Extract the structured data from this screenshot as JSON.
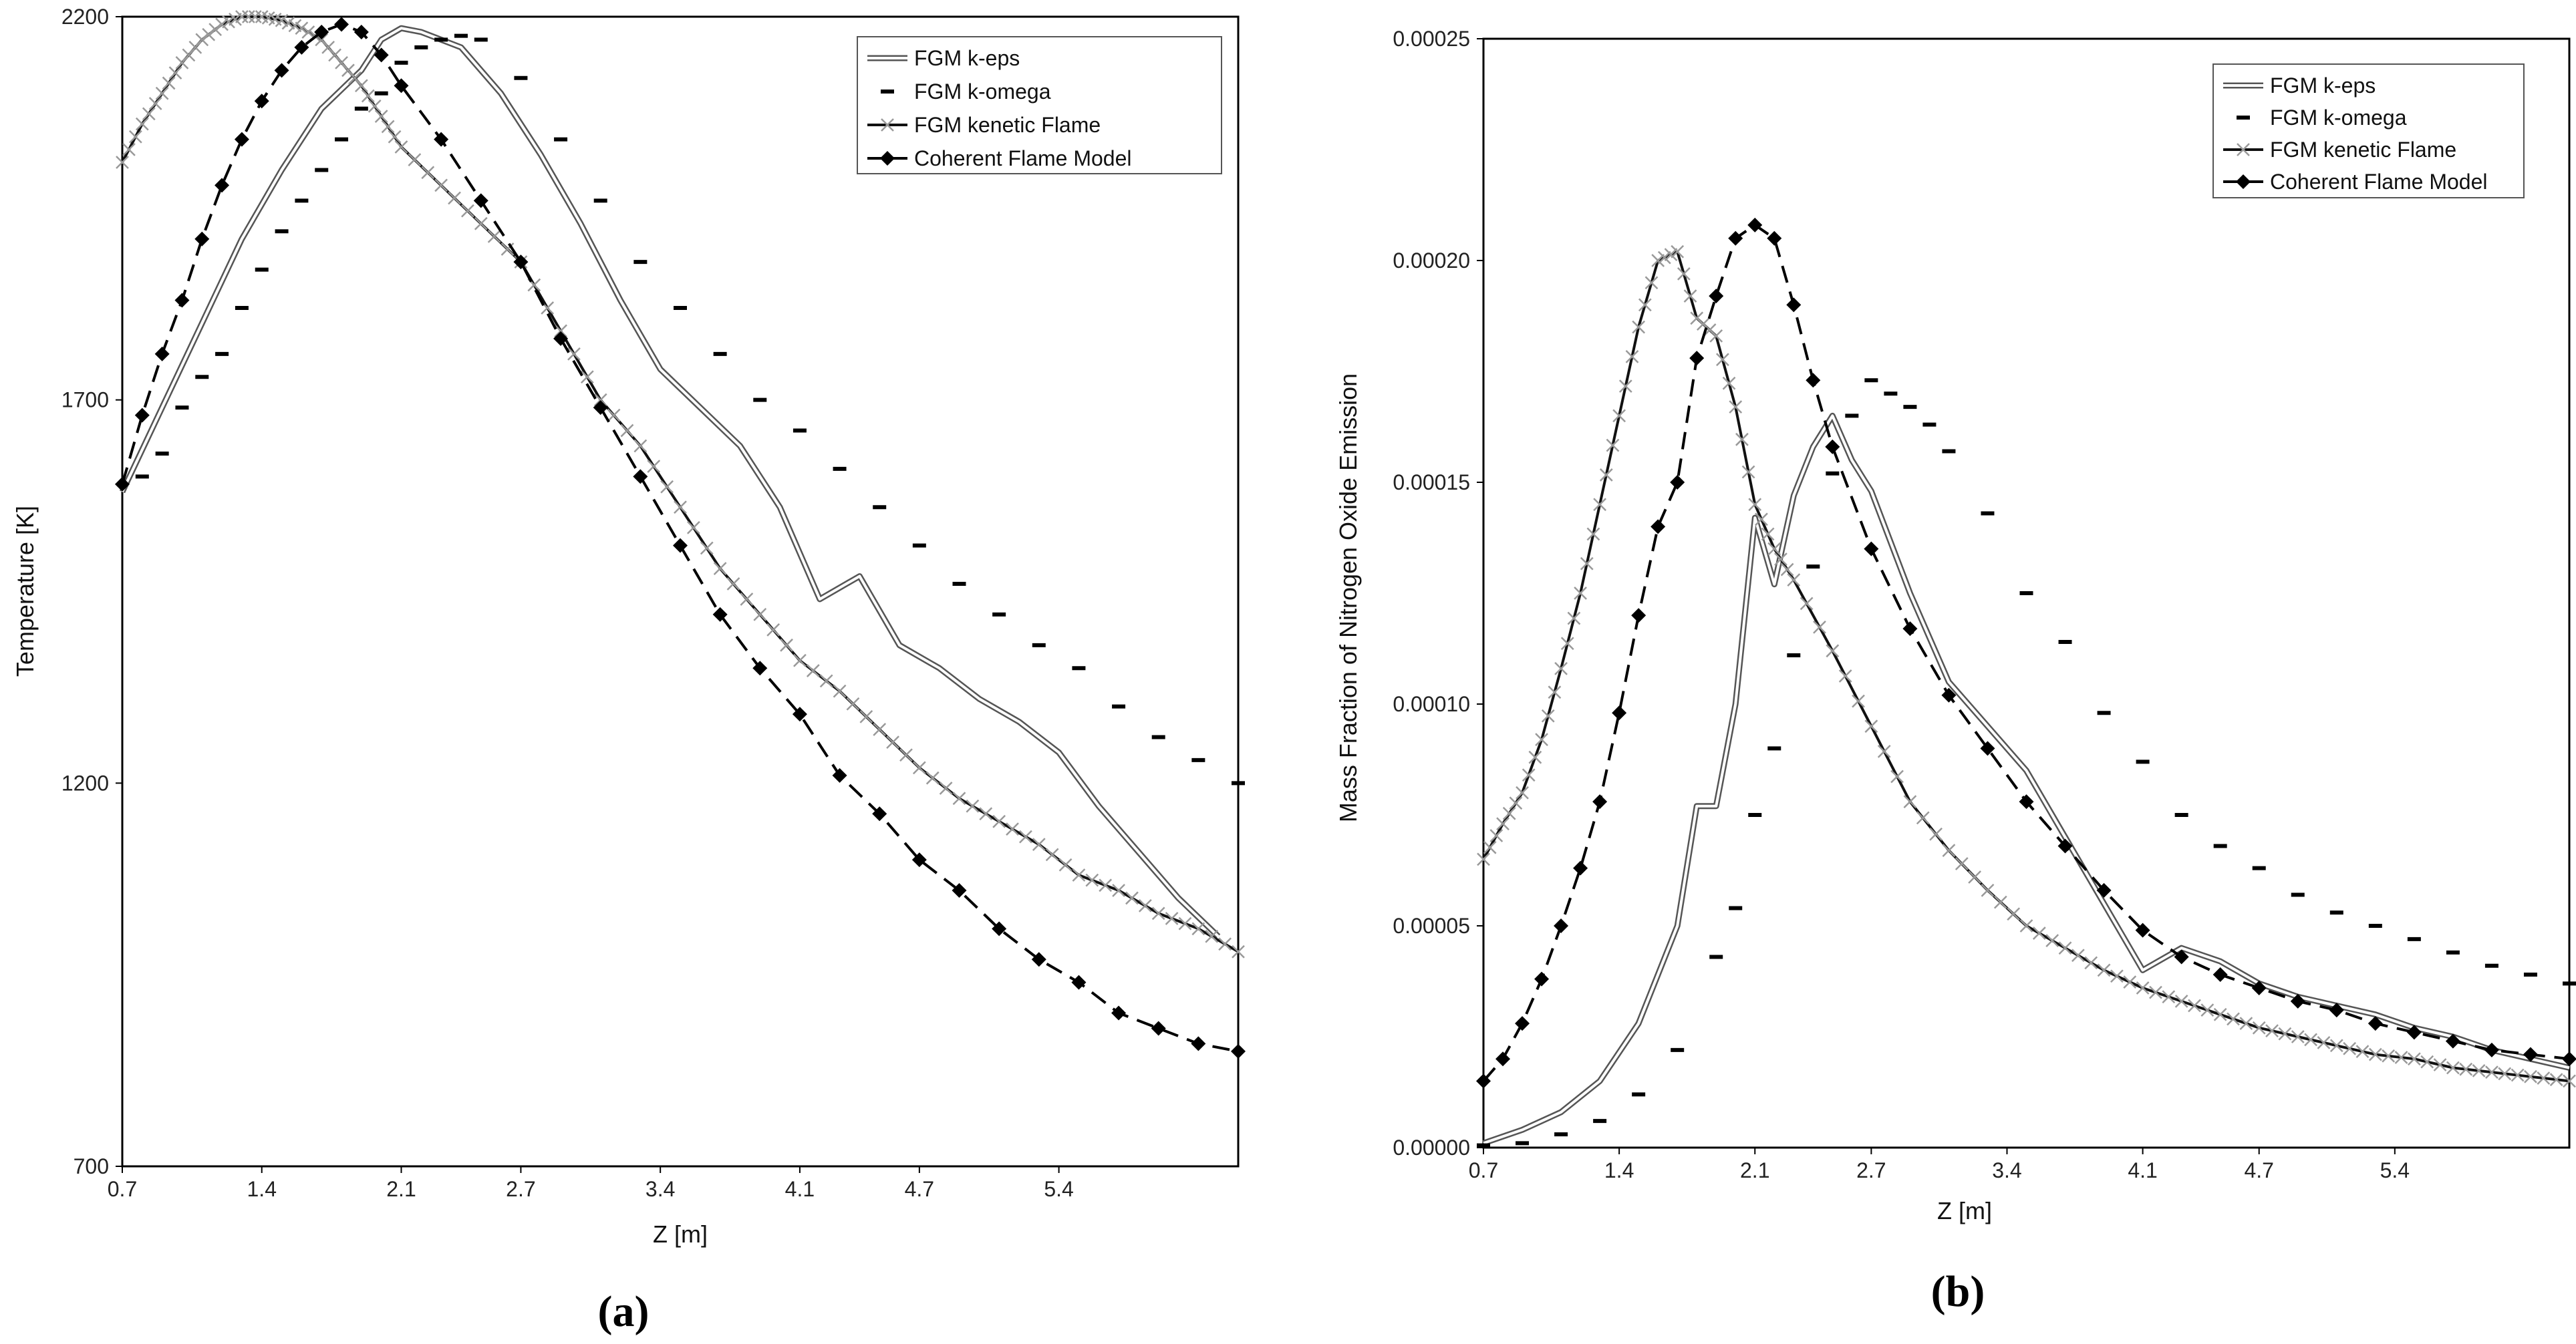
{
  "chart_data": [
    {
      "type": "line",
      "panel_label": "(a)",
      "xlabel": "Z [m]",
      "ylabel": "Temperature [K]",
      "x_tick_labels": [
        "0.7",
        "1.4",
        "2.1",
        "2.7",
        "3.4",
        "4.1",
        "4.7",
        "5.4"
      ],
      "x_ticks": [
        0.7,
        1.4,
        2.1,
        2.7,
        3.4,
        4.1,
        4.7,
        5.4
      ],
      "xlim": [
        0.7,
        6.3
      ],
      "y_tick_labels": [
        "700",
        "1200",
        "1700",
        "2200"
      ],
      "y_ticks": [
        700,
        1200,
        1700,
        2200
      ],
      "ylim": [
        700,
        2200
      ],
      "legend_position": "top-right",
      "series": [
        {
          "name": "FGM k-eps",
          "style": "double-line",
          "x": [
            0.7,
            0.9,
            1.1,
            1.3,
            1.5,
            1.7,
            1.9,
            2.0,
            2.1,
            2.2,
            2.4,
            2.6,
            2.8,
            3.0,
            3.2,
            3.4,
            3.6,
            3.8,
            4.0,
            4.2,
            4.4,
            4.6,
            4.8,
            5.0,
            5.2,
            5.4,
            5.6,
            5.8,
            6.0,
            6.2
          ],
          "y": [
            1580,
            1690,
            1800,
            1910,
            2000,
            2080,
            2130,
            2170,
            2185,
            2180,
            2160,
            2100,
            2020,
            1930,
            1830,
            1740,
            1690,
            1640,
            1560,
            1440,
            1470,
            1380,
            1350,
            1310,
            1280,
            1240,
            1170,
            1110,
            1050,
            1000
          ]
        },
        {
          "name": "FGM k-omega",
          "style": "dash-markers",
          "x": [
            0.8,
            0.9,
            1.0,
            1.1,
            1.2,
            1.3,
            1.4,
            1.5,
            1.6,
            1.7,
            1.8,
            1.9,
            2.0,
            2.1,
            2.2,
            2.3,
            2.4,
            2.5,
            2.7,
            2.9,
            3.1,
            3.3,
            3.5,
            3.7,
            3.9,
            4.1,
            4.3,
            4.5,
            4.7,
            4.9,
            5.1,
            5.3,
            5.5,
            5.7,
            5.9,
            6.1,
            6.3
          ],
          "y": [
            1600,
            1630,
            1690,
            1730,
            1760,
            1820,
            1870,
            1920,
            1960,
            2000,
            2040,
            2080,
            2100,
            2140,
            2160,
            2170,
            2175,
            2170,
            2120,
            2040,
            1960,
            1880,
            1820,
            1760,
            1700,
            1660,
            1610,
            1560,
            1510,
            1460,
            1420,
            1380,
            1350,
            1300,
            1260,
            1230,
            1200
          ]
        },
        {
          "name": "FGM kenetic Flame",
          "style": "line-x-markers",
          "x": [
            0.7,
            0.8,
            0.9,
            1.0,
            1.1,
            1.2,
            1.3,
            1.4,
            1.5,
            1.6,
            1.7,
            1.8,
            1.9,
            2.0,
            2.1,
            2.3,
            2.5,
            2.7,
            2.9,
            3.1,
            3.3,
            3.5,
            3.7,
            3.9,
            4.1,
            4.3,
            4.5,
            4.7,
            4.9,
            5.1,
            5.3,
            5.5,
            5.7,
            5.9,
            6.1,
            6.3
          ],
          "y": [
            2010,
            2060,
            2100,
            2140,
            2170,
            2190,
            2200,
            2200,
            2195,
            2185,
            2170,
            2140,
            2110,
            2070,
            2030,
            1980,
            1930,
            1880,
            1790,
            1700,
            1640,
            1560,
            1480,
            1420,
            1360,
            1320,
            1270,
            1220,
            1180,
            1150,
            1120,
            1080,
            1060,
            1030,
            1010,
            980
          ]
        },
        {
          "name": "Coherent Flame Model",
          "style": "dash-diamonds",
          "x": [
            0.7,
            0.8,
            0.9,
            1.0,
            1.1,
            1.2,
            1.3,
            1.4,
            1.5,
            1.6,
            1.7,
            1.8,
            1.9,
            2.0,
            2.1,
            2.3,
            2.5,
            2.7,
            2.9,
            3.1,
            3.3,
            3.5,
            3.7,
            3.9,
            4.1,
            4.3,
            4.5,
            4.7,
            4.9,
            5.1,
            5.3,
            5.5,
            5.7,
            5.9,
            6.1,
            6.3
          ],
          "y": [
            1590,
            1680,
            1760,
            1830,
            1910,
            1980,
            2040,
            2090,
            2130,
            2160,
            2180,
            2190,
            2180,
            2150,
            2110,
            2040,
            1960,
            1880,
            1780,
            1690,
            1600,
            1510,
            1420,
            1350,
            1290,
            1210,
            1160,
            1100,
            1060,
            1010,
            970,
            940,
            900,
            880,
            860,
            850
          ]
        }
      ]
    },
    {
      "type": "line",
      "panel_label": "(b)",
      "xlabel": "Z [m]",
      "ylabel": "Mass Fraction of Nitrogen Oxide Emission",
      "x_tick_labels": [
        "0.7",
        "1.4",
        "2.1",
        "2.7",
        "3.4",
        "4.1",
        "4.7",
        "5.4"
      ],
      "x_ticks": [
        0.7,
        1.4,
        2.1,
        2.7,
        3.4,
        4.1,
        4.7,
        5.4
      ],
      "xlim": [
        0.7,
        6.3
      ],
      "y_tick_labels": [
        "0.00000",
        "0.00005",
        "0.00010",
        "0.00015",
        "0.00020",
        "0.00025"
      ],
      "y_ticks": [
        0,
        5e-05,
        0.0001,
        0.00015,
        0.0002,
        0.00025
      ],
      "ylim": [
        0,
        0.00025
      ],
      "legend_position": "top-right",
      "series": [
        {
          "name": "FGM k-eps",
          "style": "double-line",
          "x": [
            0.7,
            0.9,
            1.1,
            1.3,
            1.5,
            1.7,
            1.8,
            1.9,
            2.0,
            2.1,
            2.2,
            2.3,
            2.4,
            2.5,
            2.6,
            2.7,
            2.9,
            3.1,
            3.3,
            3.5,
            3.7,
            3.9,
            4.1,
            4.3,
            4.5,
            4.7,
            4.9,
            5.1,
            5.3,
            5.5,
            5.7,
            5.9,
            6.1,
            6.3
          ],
          "y": [
            1e-06,
            4e-06,
            8e-06,
            1.5e-05,
            2.8e-05,
            5e-05,
            7.7e-05,
            7.7e-05,
            0.0001,
            0.000142,
            0.000127,
            0.000147,
            0.000158,
            0.000165,
            0.000155,
            0.000148,
            0.000125,
            0.000105,
            9.5e-05,
            8.5e-05,
            7e-05,
            5.5e-05,
            4e-05,
            4.5e-05,
            4.2e-05,
            3.7e-05,
            3.4e-05,
            3.2e-05,
            3e-05,
            2.7e-05,
            2.5e-05,
            2.2e-05,
            2e-05,
            1.8e-05
          ]
        },
        {
          "name": "FGM k-omega",
          "style": "dash-markers",
          "x": [
            0.7,
            0.9,
            1.1,
            1.3,
            1.5,
            1.7,
            1.9,
            2.0,
            2.1,
            2.2,
            2.3,
            2.4,
            2.5,
            2.6,
            2.7,
            2.8,
            2.9,
            3.0,
            3.1,
            3.3,
            3.5,
            3.7,
            3.9,
            4.1,
            4.3,
            4.5,
            4.7,
            4.9,
            5.1,
            5.3,
            5.5,
            5.7,
            5.9,
            6.1,
            6.3
          ],
          "y": [
            5e-07,
            1e-06,
            3e-06,
            6e-06,
            1.2e-05,
            2.2e-05,
            4.3e-05,
            5.4e-05,
            7.5e-05,
            9e-05,
            0.000111,
            0.000131,
            0.000152,
            0.000165,
            0.000173,
            0.00017,
            0.000167,
            0.000163,
            0.000157,
            0.000143,
            0.000125,
            0.000114,
            9.8e-05,
            8.7e-05,
            7.5e-05,
            6.8e-05,
            6.3e-05,
            5.7e-05,
            5.3e-05,
            5e-05,
            4.7e-05,
            4.4e-05,
            4.1e-05,
            3.9e-05,
            3.7e-05
          ]
        },
        {
          "name": "FGM kenetic Flame",
          "style": "line-x-markers",
          "x": [
            0.7,
            0.8,
            0.9,
            1.0,
            1.1,
            1.2,
            1.3,
            1.4,
            1.5,
            1.6,
            1.7,
            1.8,
            1.9,
            2.0,
            2.1,
            2.2,
            2.3,
            2.5,
            2.7,
            2.9,
            3.1,
            3.3,
            3.5,
            3.7,
            3.9,
            4.1,
            4.3,
            4.5,
            4.7,
            4.9,
            5.1,
            5.3,
            5.5,
            5.7,
            5.9,
            6.1,
            6.3
          ],
          "y": [
            6.5e-05,
            7.3e-05,
            8e-05,
            9.2e-05,
            0.000108,
            0.000125,
            0.000145,
            0.000165,
            0.000185,
            0.0002,
            0.000202,
            0.000187,
            0.000183,
            0.000167,
            0.000145,
            0.000135,
            0.000128,
            0.000112,
            9.5e-05,
            7.8e-05,
            6.7e-05,
            5.8e-05,
            5e-05,
            4.5e-05,
            4e-05,
            3.6e-05,
            3.3e-05,
            3e-05,
            2.7e-05,
            2.5e-05,
            2.3e-05,
            2.1e-05,
            2e-05,
            1.8e-05,
            1.7e-05,
            1.6e-05,
            1.5e-05
          ]
        },
        {
          "name": "Coherent Flame Model",
          "style": "dash-diamonds",
          "x": [
            0.7,
            0.8,
            0.9,
            1.0,
            1.1,
            1.2,
            1.3,
            1.4,
            1.5,
            1.6,
            1.7,
            1.8,
            1.9,
            2.0,
            2.1,
            2.2,
            2.3,
            2.4,
            2.5,
            2.7,
            2.9,
            3.1,
            3.3,
            3.5,
            3.7,
            3.9,
            4.1,
            4.3,
            4.5,
            4.7,
            4.9,
            5.1,
            5.3,
            5.5,
            5.7,
            5.9,
            6.1,
            6.3
          ],
          "y": [
            1.5e-05,
            2e-05,
            2.8e-05,
            3.8e-05,
            5e-05,
            6.3e-05,
            7.8e-05,
            9.8e-05,
            0.00012,
            0.00014,
            0.00015,
            0.000178,
            0.000192,
            0.000205,
            0.000208,
            0.000205,
            0.00019,
            0.000173,
            0.000158,
            0.000135,
            0.000117,
            0.000102,
            9e-05,
            7.8e-05,
            6.8e-05,
            5.8e-05,
            4.9e-05,
            4.3e-05,
            3.9e-05,
            3.6e-05,
            3.3e-05,
            3.1e-05,
            2.8e-05,
            2.6e-05,
            2.4e-05,
            2.2e-05,
            2.1e-05,
            2e-05
          ]
        }
      ]
    }
  ]
}
